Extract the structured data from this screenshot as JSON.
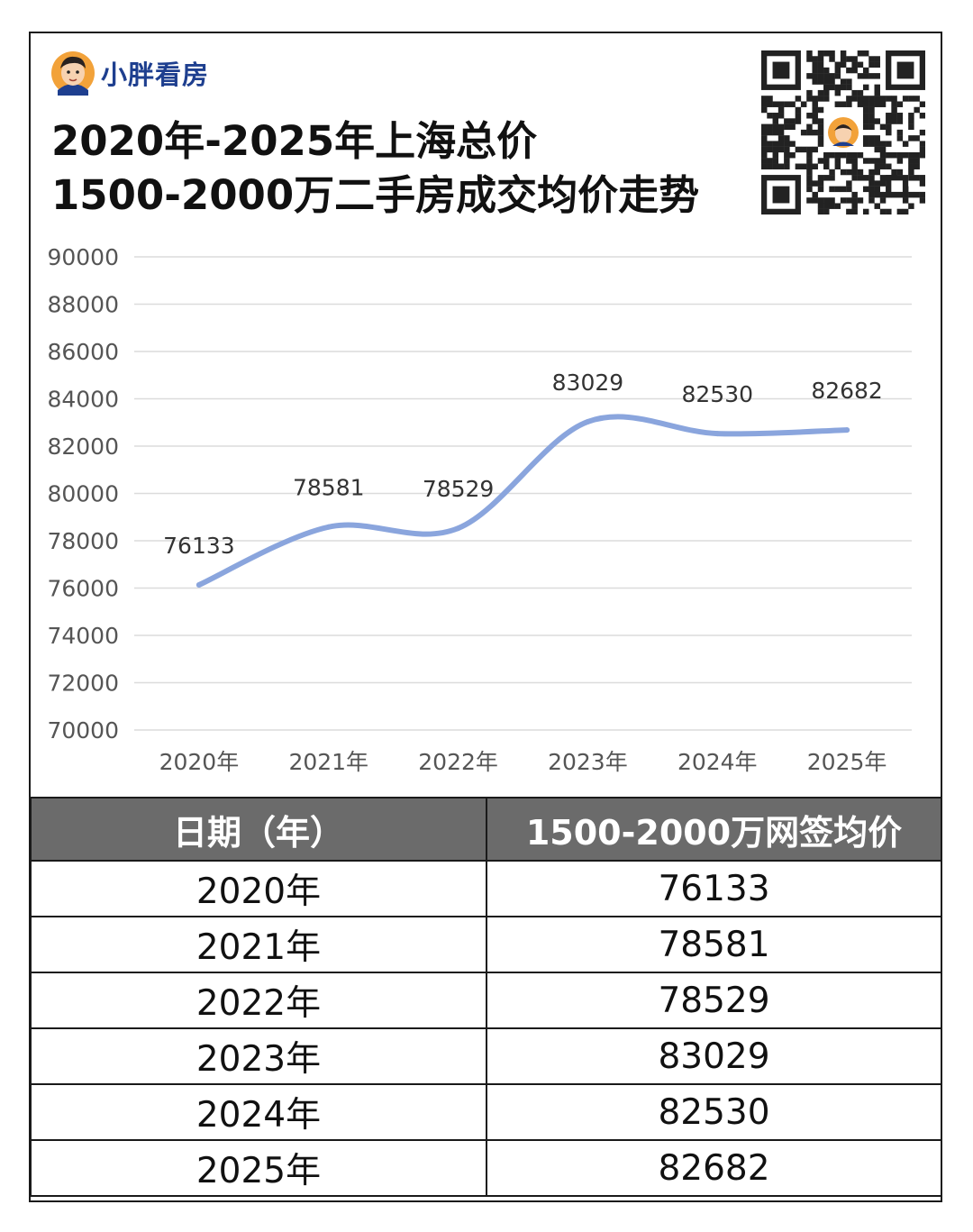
{
  "brand": {
    "name": "小胖看房"
  },
  "title": {
    "line1": "2020年-2025年上海总价",
    "line2": "1500-2000万二手房成交均价走势"
  },
  "colors": {
    "line": "#8aa5dd",
    "grid": "#dcdcdc",
    "table_header_bg": "#6b6b6b",
    "brand": "#1e3f8f"
  },
  "icons": {
    "logo": "avatar-logo-icon",
    "qr": "qr-code-icon"
  },
  "chart_data": {
    "type": "line",
    "categories": [
      "2020年",
      "2021年",
      "2022年",
      "2023年",
      "2024年",
      "2025年"
    ],
    "series": [
      {
        "values": [
          76133,
          78581,
          78529,
          83029,
          82530,
          82682
        ]
      }
    ],
    "data_labels": [
      "76133",
      "78581",
      "78529",
      "83029",
      "82530",
      "82682"
    ],
    "yticks": [
      "90000",
      "88000",
      "86000",
      "84000",
      "82000",
      "80000",
      "78000",
      "76000",
      "74000",
      "72000",
      "70000"
    ],
    "ylim": [
      70000,
      90000
    ],
    "grid": true,
    "smooth": true
  },
  "table": {
    "headers": [
      "日期（年）",
      "1500-2000万网签均价"
    ],
    "rows": [
      [
        "2020年",
        "76133"
      ],
      [
        "2021年",
        "78581"
      ],
      [
        "2022年",
        "78529"
      ],
      [
        "2023年",
        "83029"
      ],
      [
        "2024年",
        "82530"
      ],
      [
        "2025年",
        "82682"
      ]
    ]
  }
}
